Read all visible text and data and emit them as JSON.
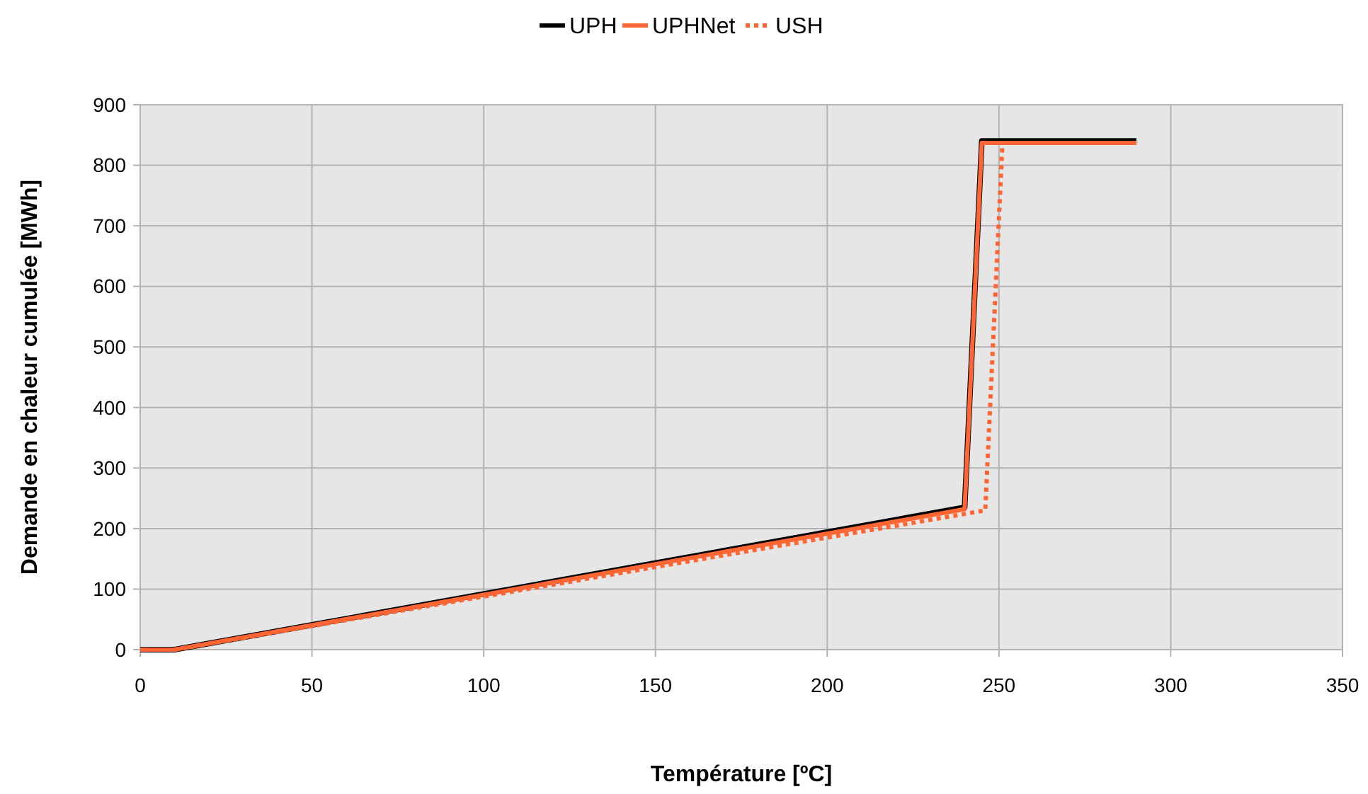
{
  "chart_data": {
    "type": "line",
    "xlabel": "Température [ºC]",
    "ylabel": "Demande en chaleur cumulée [MWh]",
    "xlim": [
      0,
      350
    ],
    "xticks": [
      0,
      50,
      100,
      150,
      200,
      250,
      300,
      350
    ],
    "ylim": [
      0,
      900
    ],
    "yticks": [
      0,
      100,
      200,
      300,
      400,
      500,
      600,
      700,
      800,
      900
    ],
    "grid": true,
    "legend": "top",
    "series": [
      {
        "name": "UPH",
        "color": "#000000",
        "x": [
          0,
          10,
          240,
          245,
          290
        ],
        "values": [
          0,
          0,
          235,
          840,
          840
        ],
        "line_style": "solid"
      },
      {
        "name": "UPHNet",
        "color": "#ff6633",
        "x": [
          0,
          10,
          240,
          245,
          290
        ],
        "values": [
          0,
          0,
          232,
          837,
          837
        ],
        "line_style": "solid"
      },
      {
        "name": "USH",
        "color": "#ff6633",
        "x": [
          10,
          246,
          251
        ],
        "values": [
          0,
          230,
          836
        ],
        "line_style": "dotted"
      }
    ]
  }
}
